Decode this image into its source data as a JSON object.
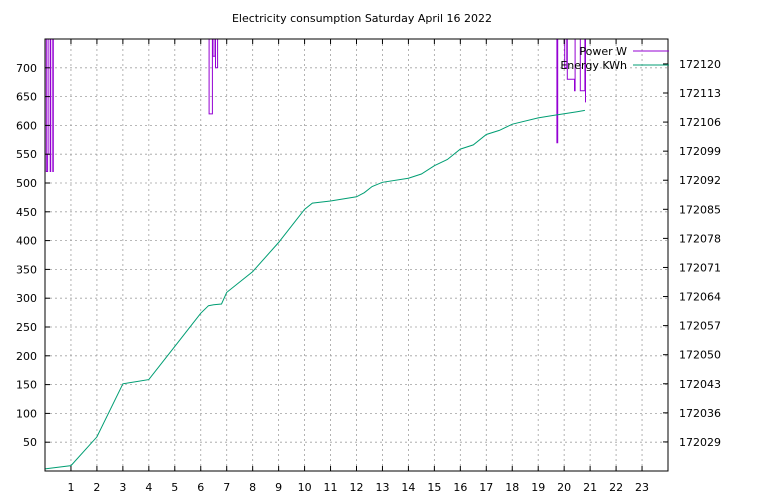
{
  "chart_data": {
    "type": "line",
    "title": "Electricity consumption Saturday April 16 2022",
    "xlabel": "",
    "ylabel": "",
    "y2label": "",
    "xlim": [
      0,
      24
    ],
    "ylim": [
      0,
      750
    ],
    "y2lim": [
      172022,
      172126
    ],
    "x_ticks": [
      1,
      2,
      3,
      4,
      5,
      6,
      7,
      8,
      9,
      10,
      11,
      12,
      13,
      14,
      15,
      16,
      17,
      18,
      19,
      20,
      21,
      22,
      23
    ],
    "y_ticks": [
      50,
      100,
      150,
      200,
      250,
      300,
      350,
      400,
      450,
      500,
      550,
      600,
      650,
      700
    ],
    "y2_ticks": [
      172029,
      172036,
      172043,
      172050,
      172057,
      172064,
      172071,
      172078,
      172085,
      172092,
      172099,
      172106,
      172113,
      172120
    ],
    "grid": true,
    "legend_position": "top-right",
    "series": [
      {
        "name": "Power W",
        "color": "#9400d3",
        "axis": "left",
        "x": [
          0,
          0.05,
          0.1,
          0.12,
          0.2,
          0.22,
          0.3,
          0.32,
          6.3,
          6.32,
          6.45,
          6.47,
          6.55,
          6.57,
          6.65,
          6.67,
          19.7,
          19.72,
          19.75,
          19.77,
          20,
          20.02,
          20.1,
          20.12,
          20.4,
          20.42,
          20.6,
          20.62,
          20.8,
          20.82
        ],
        "y": [
          750,
          520,
          550,
          750,
          520,
          750,
          520,
          750,
          750,
          620,
          750,
          720,
          750,
          700,
          750,
          750,
          750,
          570,
          750,
          750,
          750,
          700,
          750,
          680,
          660,
          750,
          750,
          660,
          750,
          640
        ]
      },
      {
        "name": "Energy KWh",
        "color": "#009e73",
        "axis": "right",
        "x": [
          0,
          1,
          2,
          3,
          4,
          5,
          5.5,
          6,
          6.3,
          6.5,
          6.8,
          7,
          8,
          9,
          9.5,
          10,
          10.3,
          11,
          12,
          12.3,
          12.6,
          13,
          14,
          14.5,
          15,
          15.5,
          16,
          16.5,
          17,
          17.5,
          18,
          19,
          19.5,
          20,
          20.5,
          20.8
        ],
        "y": [
          172022.5,
          172023.3,
          172030.2,
          172043,
          172044,
          172052,
          172056,
          172060,
          172061.8,
          172062,
          172062.2,
          172065,
          172070,
          172077,
          172081,
          172085,
          172086.5,
          172087,
          172088,
          172089,
          172090.5,
          172091.5,
          172092.5,
          172093.5,
          172095.5,
          172097,
          172099.5,
          172100.5,
          172103,
          172104,
          172105.5,
          172107,
          172107.5,
          172108,
          172108.5,
          172108.8
        ]
      }
    ]
  }
}
